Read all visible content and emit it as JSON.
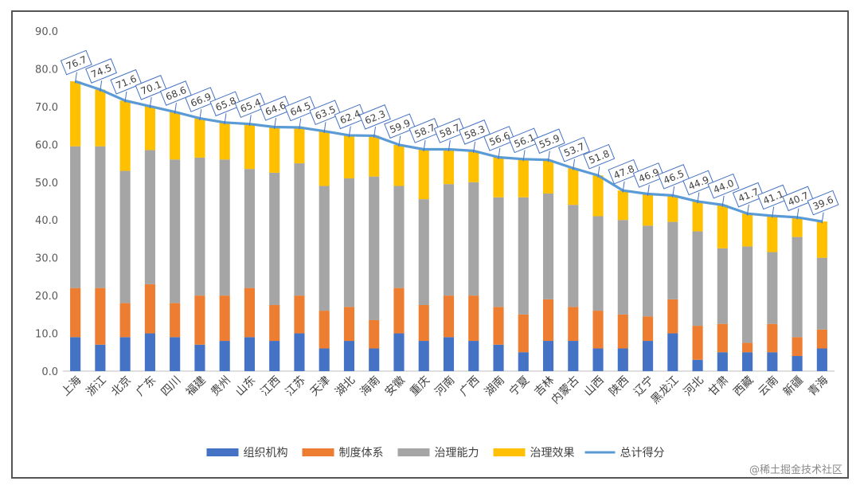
{
  "chart_data": {
    "type": "bar",
    "stacked": true,
    "categories": [
      "上海",
      "浙江",
      "北京",
      "广东",
      "四川",
      "福建",
      "贵州",
      "山东",
      "江西",
      "江苏",
      "天津",
      "湖北",
      "海南",
      "安徽",
      "重庆",
      "河南",
      "广西",
      "湖南",
      "宁夏",
      "吉林",
      "内蒙古",
      "山西",
      "陕西",
      "辽宁",
      "黑龙江",
      "河北",
      "甘肃",
      "西藏",
      "云南",
      "新疆",
      "青海"
    ],
    "series": [
      {
        "name": "组织机构",
        "color": "#4472C4",
        "values": [
          9,
          7,
          9,
          10,
          9,
          7,
          8,
          9,
          8,
          10,
          6,
          8,
          6,
          10,
          8,
          9,
          8,
          7,
          5,
          8,
          8,
          6,
          6,
          8,
          10,
          3,
          5,
          5,
          5,
          4,
          6
        ]
      },
      {
        "name": "制度体系",
        "color": "#ED7D31",
        "values": [
          13,
          15,
          9,
          13,
          9,
          13,
          12,
          13,
          9.5,
          10,
          10,
          9,
          7.5,
          12,
          9.5,
          11,
          12,
          10,
          10,
          11,
          9,
          10,
          9,
          6.5,
          9,
          9,
          7.5,
          2.5,
          7.5,
          5,
          5
        ]
      },
      {
        "name": "治理能力",
        "color": "#A5A5A5",
        "values": [
          37.5,
          37.5,
          35,
          35.5,
          38,
          36.5,
          36,
          31.5,
          35,
          35,
          33,
          34,
          38,
          27,
          28,
          29.5,
          30,
          29,
          31,
          28,
          27,
          25,
          25,
          24,
          20.5,
          25,
          20,
          25.5,
          19,
          26.5,
          19
        ]
      },
      {
        "name": "治理效果",
        "color": "#FFC000",
        "values": [
          17.2,
          15,
          18.6,
          11.6,
          12.6,
          10.4,
          9.8,
          11.9,
          12.1,
          9.5,
          14.5,
          11.4,
          10.8,
          10.9,
          13.2,
          9.2,
          8.3,
          10.6,
          10.1,
          8.9,
          9.7,
          10.8,
          7.8,
          8.4,
          7,
          7.9,
          11.5,
          8.7,
          9.6,
          5.2,
          9.6
        ]
      }
    ],
    "total": {
      "name": "总计得分",
      "color": "#5B9BD5",
      "values": [
        76.7,
        74.5,
        71.6,
        70.1,
        68.6,
        66.9,
        65.8,
        65.4,
        64.6,
        64.5,
        63.5,
        62.4,
        62.3,
        59.9,
        58.7,
        58.7,
        58.3,
        56.6,
        56.1,
        55.9,
        53.7,
        51.8,
        47.8,
        46.9,
        46.5,
        44.9,
        44.0,
        41.7,
        41.1,
        40.7,
        39.6
      ],
      "labels": [
        "76.7",
        "74.5",
        "71.6",
        "70.1",
        "68.6",
        "66.9",
        "65.8",
        "65.4",
        "64.6",
        "64.5",
        "63.5",
        "62.4",
        "62.3",
        "59.9",
        "58.7",
        "58.7",
        "58.3",
        "56.6",
        "56.1",
        "55.9",
        "53.7",
        "51.8",
        "47.8",
        "46.9",
        "46.5",
        "44.9",
        "44.0",
        "41.7",
        "41.1",
        "40.7",
        "39.6"
      ]
    },
    "ylim": [
      0,
      90
    ],
    "yticks": [
      "0.0",
      "10.0",
      "20.0",
      "30.0",
      "40.0",
      "50.0",
      "60.0",
      "70.0",
      "80.0",
      "90.0"
    ],
    "legend_position": "bottom",
    "title": "",
    "xlabel": "",
    "ylabel": ""
  },
  "watermark": "@稀土掘金技术社区"
}
